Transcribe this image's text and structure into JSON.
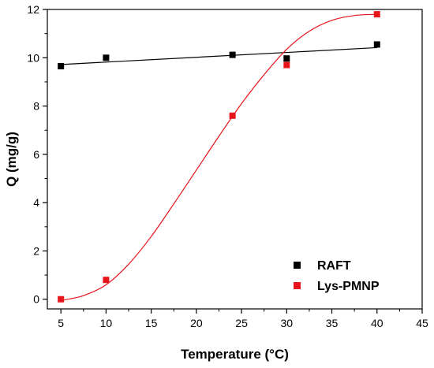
{
  "chart_data": {
    "type": "scatter",
    "title": "",
    "xlabel": "Temperature (°C)",
    "ylabel": "Q (mg/g)",
    "xlim": [
      3.5,
      45
    ],
    "ylim": [
      -0.4,
      12
    ],
    "x_ticks": [
      5,
      10,
      15,
      20,
      25,
      30,
      35,
      40,
      45
    ],
    "y_ticks": [
      0,
      2,
      4,
      6,
      8,
      10,
      12
    ],
    "grid": false,
    "legend_position": "bottom-right",
    "series": [
      {
        "name": "RAFT",
        "color": "#000000",
        "marker": "square",
        "x": [
          5,
          10,
          24,
          30,
          40
        ],
        "y": [
          9.65,
          10.0,
          10.12,
          9.97,
          10.55
        ],
        "fit": {
          "type": "linear",
          "x": [
            5,
            40
          ],
          "y": [
            9.72,
            10.42
          ]
        }
      },
      {
        "name": "Lys-PMNP",
        "color": "#e8141b",
        "marker": "square",
        "x": [
          5,
          10,
          24,
          30,
          40
        ],
        "y": [
          0.0,
          0.8,
          7.6,
          9.7,
          11.8
        ],
        "fit": {
          "type": "sigmoidal",
          "x": [
            5,
            7.5,
            10,
            12.5,
            15,
            17.5,
            20,
            22.5,
            25,
            27.5,
            30,
            32.5,
            35,
            37.5,
            40
          ],
          "y": [
            -0.05,
            0.15,
            0.6,
            1.45,
            2.6,
            3.95,
            5.35,
            6.75,
            8.1,
            9.3,
            10.35,
            11.1,
            11.55,
            11.75,
            11.8
          ]
        }
      }
    ]
  }
}
